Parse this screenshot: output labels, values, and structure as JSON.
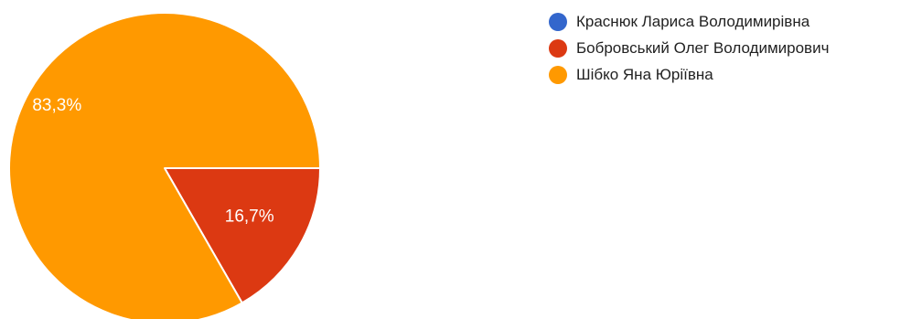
{
  "chart_data": {
    "type": "pie",
    "title": "",
    "legend_position": "right",
    "slices": [
      {
        "name": "Краснюк Лариса Володимирівна",
        "value": 0,
        "label": "",
        "color": "#3366cc"
      },
      {
        "name": "Бобровський Олег Володимирович",
        "value": 16.7,
        "label": "16,7%",
        "color": "#dc3912"
      },
      {
        "name": "Шібко Яна Юріївна",
        "value": 83.3,
        "label": "83,3%",
        "color": "#ff9900"
      }
    ]
  }
}
